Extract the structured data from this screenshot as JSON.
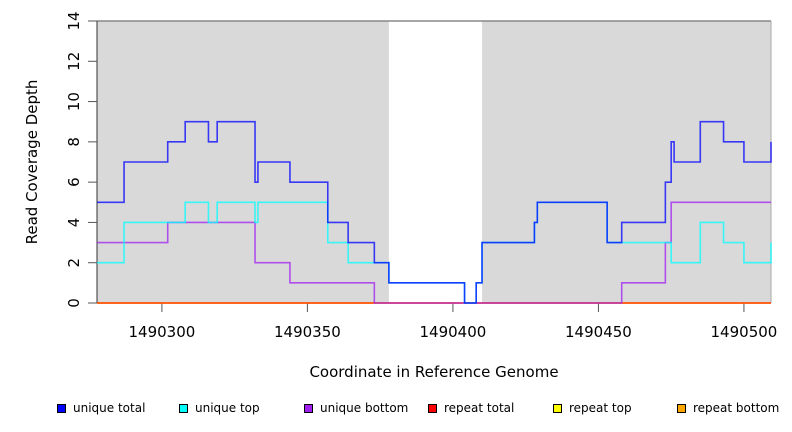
{
  "chart_data": {
    "type": "line",
    "step": true,
    "xlabel": "Coordinate in Reference Genome",
    "ylabel": "Read Coverage Depth",
    "xlim": [
      1490277.7,
      1490509.3
    ],
    "ylim": [
      0,
      14
    ],
    "xticks": [
      1490300,
      1490350,
      1490400,
      1490450,
      1490500
    ],
    "yticks": [
      0,
      2,
      4,
      6,
      8,
      10,
      12,
      14
    ],
    "shaded_regions": [
      [
        1490277.7,
        1490378
      ],
      [
        1490410,
        1490509.3
      ]
    ],
    "shade_color": "#d9d9d9",
    "legend_position": "bottom",
    "series": [
      {
        "name": "unique total",
        "color": "#0000ff",
        "points": [
          [
            1490277.7,
            5
          ],
          [
            1490287,
            7
          ],
          [
            1490302,
            8
          ],
          [
            1490308,
            9
          ],
          [
            1490316,
            8
          ],
          [
            1490319,
            9
          ],
          [
            1490332,
            6
          ],
          [
            1490333,
            7
          ],
          [
            1490344,
            6
          ],
          [
            1490357,
            4
          ],
          [
            1490364,
            3
          ],
          [
            1490373,
            2
          ],
          [
            1490378,
            1
          ],
          [
            1490404,
            0
          ],
          [
            1490408,
            1
          ],
          [
            1490410,
            3
          ],
          [
            1490428,
            4
          ],
          [
            1490429,
            5
          ],
          [
            1490453,
            3
          ],
          [
            1490458,
            4
          ],
          [
            1490473,
            6
          ],
          [
            1490475,
            8
          ],
          [
            1490476,
            7
          ],
          [
            1490485,
            9
          ],
          [
            1490493,
            8
          ],
          [
            1490500,
            7
          ],
          [
            1490509.3,
            8
          ]
        ]
      },
      {
        "name": "unique top",
        "color": "#00ffff",
        "points": [
          [
            1490277.7,
            2
          ],
          [
            1490287,
            4
          ],
          [
            1490308,
            5
          ],
          [
            1490316,
            4
          ],
          [
            1490319,
            5
          ],
          [
            1490332,
            4
          ],
          [
            1490333,
            5
          ],
          [
            1490357,
            3
          ],
          [
            1490364,
            2
          ],
          [
            1490378,
            1
          ],
          [
            1490404,
            0
          ],
          [
            1490408,
            1
          ],
          [
            1490410,
            3
          ],
          [
            1490428,
            4
          ],
          [
            1490429,
            5
          ],
          [
            1490453,
            3
          ],
          [
            1490475,
            2
          ],
          [
            1490485,
            4
          ],
          [
            1490493,
            3
          ],
          [
            1490500,
            2
          ],
          [
            1490509.3,
            3
          ]
        ]
      },
      {
        "name": "unique bottom",
        "color": "#a020f0",
        "points": [
          [
            1490277.7,
            3
          ],
          [
            1490302,
            4
          ],
          [
            1490332,
            2
          ],
          [
            1490344,
            1
          ],
          [
            1490373,
            0
          ],
          [
            1490458,
            1
          ],
          [
            1490473,
            3
          ],
          [
            1490475,
            5
          ],
          [
            1490509.3,
            5
          ]
        ]
      },
      {
        "name": "repeat total",
        "color": "#ff0000",
        "points": [
          [
            1490277.7,
            0
          ],
          [
            1490509.3,
            0
          ]
        ]
      },
      {
        "name": "repeat top",
        "color": "#ffff00",
        "points": [
          [
            1490277.7,
            0
          ],
          [
            1490509.3,
            0
          ]
        ]
      },
      {
        "name": "repeat bottom",
        "color": "#ffa500",
        "points": [
          [
            1490277.7,
            0
          ],
          [
            1490509.3,
            0
          ]
        ]
      }
    ]
  }
}
